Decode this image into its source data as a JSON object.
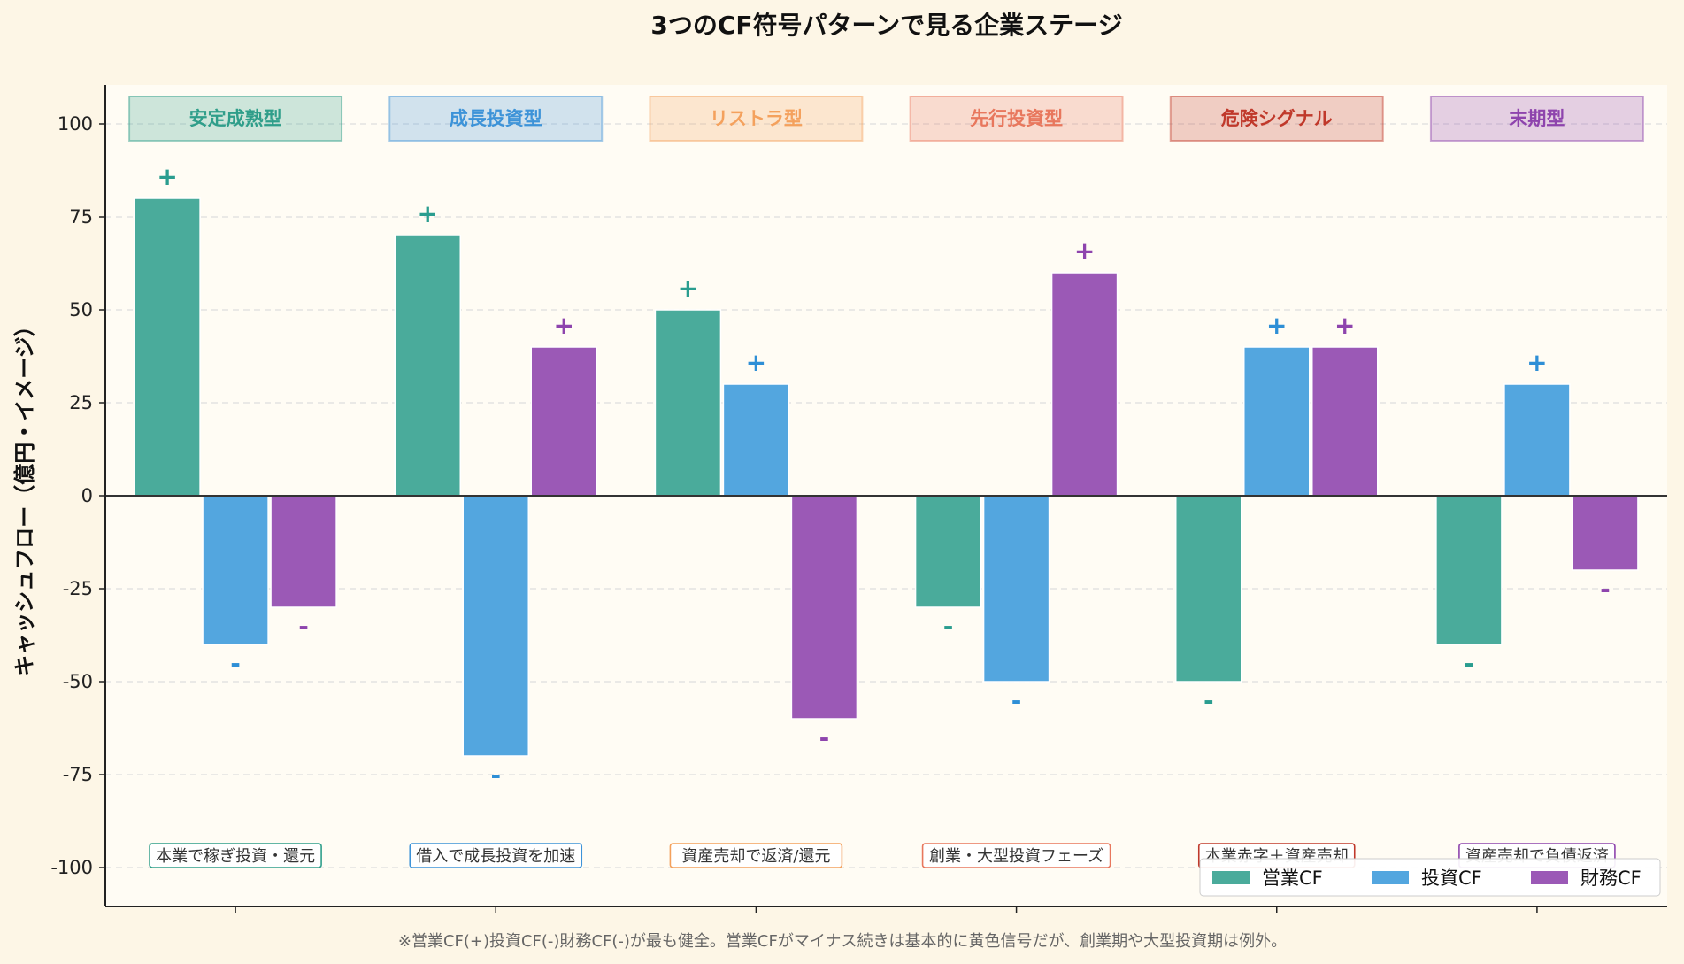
{
  "chart_data": {
    "type": "bar",
    "title": "3つのCF符号パターンで見る企業ステージ",
    "ylabel": "キャッシュフロー（億円・イメージ）",
    "xlabel": "",
    "ylim": [
      -110,
      110
    ],
    "yticks": [
      100,
      75,
      50,
      25,
      0,
      -25,
      -50,
      -75,
      -100
    ],
    "grid": "horizontal dashed",
    "legend_position": "bottom-right",
    "categories": [
      "安定成熟型",
      "成長投資型",
      "リストラ型",
      "先行投資型",
      "危険シグナル",
      "末期型"
    ],
    "category_colors": [
      "#2f9e8a",
      "#3d93d8",
      "#f4a15d",
      "#e8775d",
      "#c0392b",
      "#8e44ad"
    ],
    "captions": [
      "本業で稼ぎ投資・還元",
      "借入で成長投資を加速",
      "資産売却で返済/還元",
      "創業・大型投資フェーズ",
      "本業赤字＋資産売却",
      "資産売却で負債返済"
    ],
    "series": [
      {
        "name": "営業CF",
        "color": "#4aab9b",
        "label_color": "#2a9d8f",
        "values": [
          80,
          70,
          50,
          -30,
          -50,
          -40
        ]
      },
      {
        "name": "投資CF",
        "color": "#53a6df",
        "label_color": "#2e8fd6",
        "values": [
          -40,
          -70,
          30,
          -50,
          40,
          30
        ]
      },
      {
        "name": "財務CF",
        "color": "#9b59b6",
        "label_color": "#8e44ad",
        "values": [
          -30,
          40,
          -60,
          60,
          40,
          -20
        ]
      }
    ],
    "sign_labels": {
      "positive": "+",
      "negative": "-"
    },
    "footnote": "※営業CF(+)投資CF(-)財務CF(-)が最も健全。営業CFがマイナス続きは基本的に黄色信号だが、創業期や大型投資期は例外。"
  }
}
